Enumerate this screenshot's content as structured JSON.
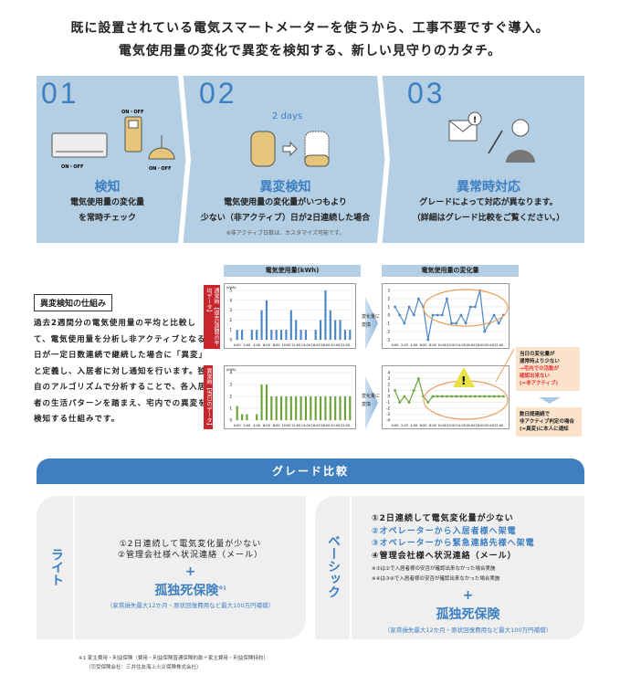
{
  "headline": [
    "既に設置されている電気スマートメーターを使うから、工事不要ですぐ導入。",
    "電気使用量の変化で異変を検知する、新しい見守りのカタチ。"
  ],
  "steps": [
    {
      "number": "01",
      "title": "検知",
      "desc": [
        "電気使用量の変化量",
        "を常時チェック"
      ],
      "icon_labels": [
        "ON・OFF",
        "ON・OFF",
        "ON・OFF"
      ]
    },
    {
      "number": "02",
      "title": "異変検知",
      "desc": [
        "電気使用量の変化量がいつもより",
        "少ない（非アクティブ）日が2日連続した場合"
      ],
      "note": "※非アクティブ日数は、カスタマイズ可能です。",
      "icon_label": "2 days"
    },
    {
      "number": "03",
      "title": "異常時対応",
      "desc": [
        "グレードによって対応が異なります。",
        "（詳細はグレード比較をご覧ください。）"
      ]
    }
  ],
  "mechanism": {
    "title": "異変検知の仕組み",
    "body": "過去2週間分の電気使用量の平均と比較して、電気使用量を分析し非アクティブとなる日が一定日数連続で継続した場合に「異変」と定義し、入居者に対し通知を行います。独自のアルゴリズムで分析することで、各入居者の生活パターンを踏まえ、宅内での異変を検知する仕組みです。"
  },
  "labels": {
    "normal": "通常時【過去2週間の平均データ】",
    "abnormal": "異常時【当日のデータ】",
    "arrow": [
      "変化量に",
      "変換"
    ],
    "warning": "!"
  },
  "callouts": {
    "first": [
      "当日の変化量が",
      "通常時より少ない"
    ],
    "first_red": [
      "→宅内での活動が",
      "確認出来ない",
      "(=非アクティブ)"
    ],
    "second": [
      "数日間連続で",
      "非アクティブ判定の場合",
      "(=異変)に本人に通知"
    ]
  },
  "chart_data": [
    {
      "type": "bar",
      "title": "電気使用量(kWh)",
      "ylabel": "(kWh)",
      "ylim": [
        0,
        5
      ],
      "color": "#4a86c5",
      "categories": [
        "0:00",
        "1:00",
        "2:00",
        "3:00",
        "4:00",
        "5:00",
        "6:00",
        "7:00",
        "8:00",
        "9:00",
        "10:00",
        "11:00",
        "12:00",
        "13:00",
        "14:00",
        "15:00",
        "16:00",
        "17:00",
        "18:00",
        "19:00",
        "20:00",
        "21:00",
        "22:00",
        "23:00"
      ],
      "values": [
        1,
        1,
        0,
        1,
        1,
        3,
        4,
        1,
        1,
        1,
        1,
        3,
        2,
        1,
        1,
        0,
        1,
        2,
        5,
        3,
        2,
        2,
        1,
        1
      ]
    },
    {
      "type": "bar",
      "title": "",
      "ylabel": "(kWh)",
      "ylim": [
        0,
        4
      ],
      "color": "#6aa33c",
      "categories": [
        "0:00",
        "1:00",
        "2:00",
        "3:00",
        "4:00",
        "5:00",
        "6:00",
        "7:00",
        "8:00",
        "9:00",
        "10:00",
        "11:00",
        "12:00",
        "13:00",
        "14:00",
        "15:00",
        "16:00",
        "17:00",
        "18:00",
        "19:00",
        "20:00",
        "21:00",
        "22:00",
        "23:00"
      ],
      "values": [
        1.2,
        0.5,
        0.5,
        0,
        0.5,
        3,
        3,
        2,
        2,
        2,
        2,
        2,
        2,
        2,
        2,
        2,
        2,
        2,
        2,
        2,
        2,
        2,
        2,
        2
      ]
    },
    {
      "type": "line",
      "title": "電気使用量の変化量",
      "ylim": [
        -3,
        3
      ],
      "color": "#4a86c5",
      "categories": [
        "0:00",
        "1:00",
        "2:00",
        "3:00",
        "4:00",
        "5:00",
        "6:00",
        "7:00",
        "8:00",
        "9:00",
        "10:00",
        "11:00",
        "12:00",
        "13:00",
        "14:00",
        "15:00",
        "16:00",
        "17:00",
        "18:00",
        "19:00",
        "20:00",
        "21:00",
        "22:00",
        "23:00"
      ],
      "values": [
        1,
        0,
        -1,
        1,
        0,
        2,
        1,
        -3,
        0,
        0,
        0,
        2,
        -1,
        -1,
        0,
        -1,
        1,
        1,
        3,
        -2,
        -1,
        0,
        -1,
        0
      ]
    },
    {
      "type": "line",
      "title": "",
      "ylim": [
        -4,
        4
      ],
      "color": "#6aa33c",
      "categories": [
        "0:00",
        "1:00",
        "2:00",
        "3:00",
        "4:00",
        "5:00",
        "6:00",
        "7:00",
        "8:00",
        "9:00",
        "10:00",
        "11:00",
        "12:00",
        "13:00",
        "14:00",
        "15:00",
        "16:00",
        "17:00",
        "18:00",
        "19:00",
        "20:00",
        "21:00",
        "22:00",
        "23:00"
      ],
      "values": [
        1,
        -1,
        0,
        -1,
        1,
        3,
        0,
        -1,
        0,
        0,
        0,
        0,
        0,
        0,
        0,
        0,
        0,
        0,
        0,
        0,
        0,
        0,
        0,
        0
      ]
    }
  ],
  "grade": {
    "title": "グレード比較",
    "lite": {
      "name": "ライト",
      "items": [
        "①2日連続して電気変化量が少ない",
        "②管理会社様へ状況連絡（メール）"
      ],
      "plus": "+",
      "insurance": "孤独死保険",
      "sup": "※1",
      "insurance_note": "（家賃損失最大12か月・原状回復費用など最大100万円補償）"
    },
    "basic": {
      "name": "ベーシック",
      "items": [
        "①2日連続して電気変化量が少ない",
        "②オペレーターから入居者様へ架電",
        "③オペレーターから緊急連絡先様へ架電",
        "④管理会社様へ状況連絡（メール）"
      ],
      "notes": [
        "※③は②で入居者様の安否が確認出来なかった場合実施",
        "※④は③④で入居者様の安否が確認出来なかった場合実施"
      ],
      "plus": "+",
      "insurance": "孤独死保険",
      "insurance_note": "（家賃損失最大12か月・原状回復費用など最大100万円補償）"
    }
  },
  "footnote": [
    "※1 家主費用・利益保険（費用・利益保険普通保険約款＋家主費用・利益保険特約）",
    "（引受保険会社：三井住友海上火災保険株式会社）"
  ],
  "colors": {
    "accent": "#3d7fc1",
    "band": "#b4cfe3",
    "alert": "#c8262c",
    "callout": "#fbe3cb",
    "highlight": "#e8a060"
  }
}
